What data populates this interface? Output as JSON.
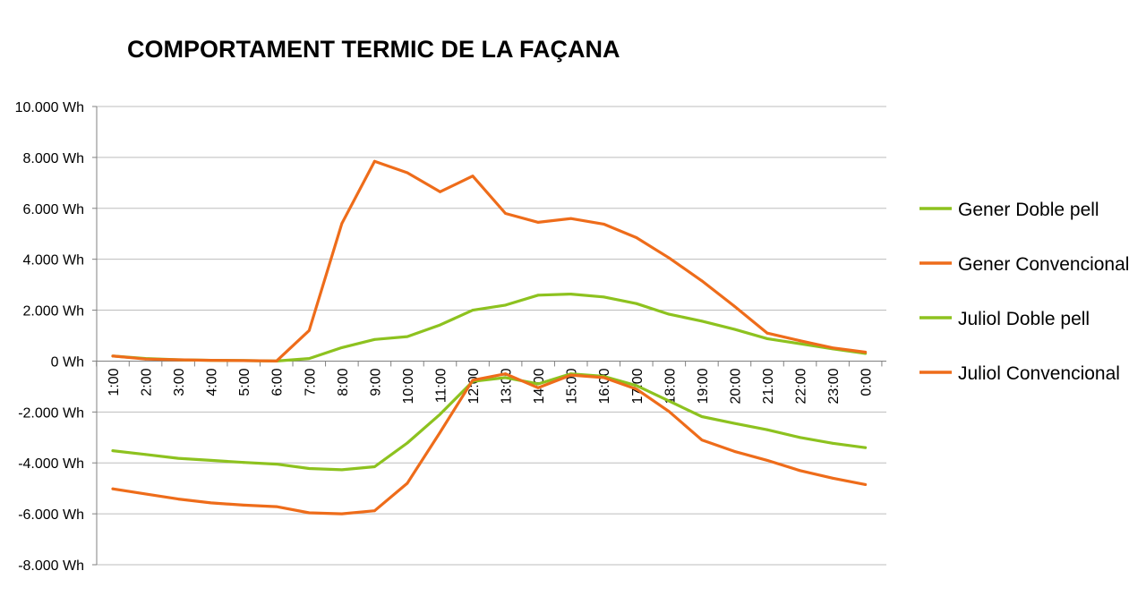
{
  "chart_data": {
    "type": "line",
    "title": "COMPORTAMENT TERMIC DE LA FAÇANA",
    "xlabel": "",
    "ylabel": "",
    "ylim": [
      -8000,
      10000
    ],
    "y_ticks": [
      10000,
      8000,
      6000,
      4000,
      2000,
      0,
      -2000,
      -4000,
      -6000,
      -8000
    ],
    "y_tick_labels": [
      "10.000 Wh",
      "8.000 Wh",
      "6.000 Wh",
      "4.000 Wh",
      "2.000 Wh",
      "0 Wh",
      "-2.000 Wh",
      "-4.000 Wh",
      "-6.000 Wh",
      "-8.000 Wh"
    ],
    "categories": [
      "1:00",
      "2:00",
      "3:00",
      "4:00",
      "5:00",
      "6:00",
      "7:00",
      "8:00",
      "9:00",
      "10:00",
      "11:00",
      "12:00",
      "13:00",
      "14:00",
      "15:00",
      "16:00",
      "17:00",
      "18:00",
      "19:00",
      "20:00",
      "21:00",
      "22:00",
      "23:00",
      "0:00"
    ],
    "grid": true,
    "legend_position": "right",
    "series": [
      {
        "name": "Gener Doble pell",
        "color": "#8dc21f",
        "values": [
          200,
          100,
          50,
          30,
          20,
          0,
          100,
          530,
          850,
          960,
          1420,
          2000,
          2200,
          2590,
          2630,
          2520,
          2260,
          1840,
          1570,
          1250,
          880,
          680,
          480,
          300
        ]
      },
      {
        "name": "Gener Convencional",
        "color": "#ee6c1a",
        "values": [
          200,
          80,
          50,
          30,
          20,
          0,
          1200,
          5400,
          7850,
          7400,
          6650,
          7270,
          5800,
          5450,
          5600,
          5380,
          4850,
          4050,
          3150,
          2150,
          1100,
          800,
          520,
          350
        ]
      },
      {
        "name": "Juliol Doble pell",
        "color": "#8dc21f",
        "values": [
          -3520,
          -3670,
          -3820,
          -3900,
          -3980,
          -4050,
          -4220,
          -4270,
          -4150,
          -3220,
          -2090,
          -800,
          -650,
          -900,
          -500,
          -600,
          -960,
          -1570,
          -2180,
          -2450,
          -2700,
          -3000,
          -3230,
          -3400
        ]
      },
      {
        "name": "Juliol Convencional",
        "color": "#ee6c1a",
        "values": [
          -5020,
          -5220,
          -5420,
          -5570,
          -5660,
          -5720,
          -5960,
          -6000,
          -5880,
          -4800,
          -2800,
          -750,
          -500,
          -1050,
          -550,
          -650,
          -1100,
          -1980,
          -3100,
          -3550,
          -3900,
          -4300,
          -4600,
          -4850
        ]
      }
    ]
  }
}
